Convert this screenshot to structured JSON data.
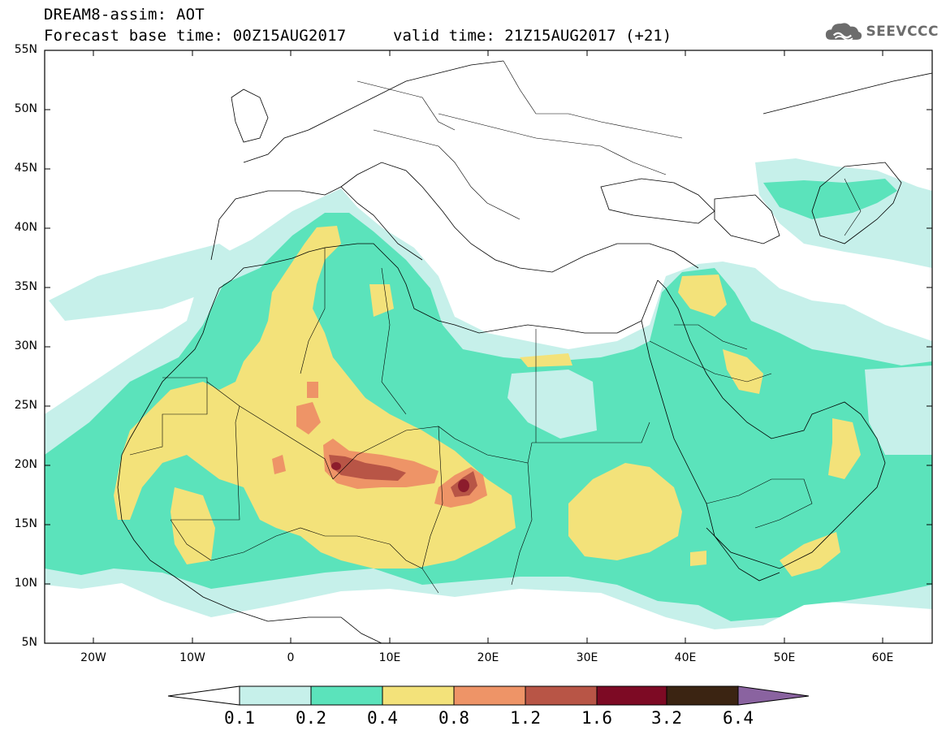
{
  "header": {
    "title_line1": "DREAM8-assim: AOT",
    "title_line2": "Forecast base time: 00Z15AUG2017",
    "valid_time": "valid time: 21Z15AUG2017 (+21)"
  },
  "logo": {
    "text": "SEEVCCC",
    "icon": "cloud-icon"
  },
  "map": {
    "lat_labels": [
      "55N",
      "50N",
      "45N",
      "40N",
      "35N",
      "30N",
      "25N",
      "20N",
      "15N",
      "10N",
      "5N"
    ],
    "lon_labels": [
      "20W",
      "10W",
      "0",
      "10E",
      "20E",
      "30E",
      "40E",
      "50E",
      "60E"
    ]
  },
  "colorbar": {
    "levels": [
      "0.1",
      "0.2",
      "0.4",
      "0.8",
      "1.2",
      "1.6",
      "3.2",
      "6.4"
    ],
    "colors": [
      "#c6f0ea",
      "#5be3bb",
      "#f3e27a",
      "#ee9467",
      "#b85546",
      "#7d0a24",
      "#3b2412",
      "#8a63a0"
    ]
  }
}
